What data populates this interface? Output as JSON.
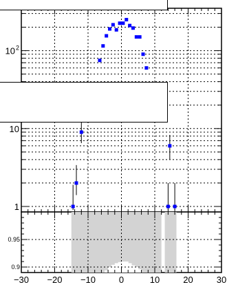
{
  "chart_data": [
    {
      "panel": "main",
      "type": "scatter",
      "scale": "log",
      "xlim": [
        -30,
        30
      ],
      "ylim": [
        0.85,
        350
      ],
      "y_tick_labels": [
        {
          "value": 1,
          "label": "1"
        },
        {
          "value": 10,
          "label": "10"
        },
        {
          "value": 100,
          "label": "10",
          "exponent": "2"
        }
      ],
      "grid": true,
      "series": [
        {
          "marker": "filled-square",
          "color": "#0000ff",
          "points": [
            {
              "x": -14.5,
              "y": 1,
              "err_low": 0.9,
              "err_high": 1.9
            },
            {
              "x": -13.5,
              "y": 2,
              "err_low": 1.4,
              "err_high": 3.4
            },
            {
              "x": -12,
              "y": 9,
              "err_low": 6.5,
              "err_high": 12.5
            },
            {
              "x": -6.5,
              "y": 75
            },
            {
              "x": -5.5,
              "y": 115
            },
            {
              "x": -4.5,
              "y": 155
            },
            {
              "x": -3.5,
              "y": 190
            },
            {
              "x": -2.5,
              "y": 215
            },
            {
              "x": -1.5,
              "y": 185
            },
            {
              "x": -0.5,
              "y": 225
            },
            {
              "x": 0.5,
              "y": 225
            },
            {
              "x": 1.5,
              "y": 250
            },
            {
              "x": 2.5,
              "y": 210
            },
            {
              "x": 3.5,
              "y": 195
            },
            {
              "x": 4.5,
              "y": 150
            },
            {
              "x": 5.5,
              "y": 150
            },
            {
              "x": 6.5,
              "y": 90
            },
            {
              "x": 7.5,
              "y": 60
            },
            {
              "x": 14,
              "y": 1,
              "err_low": 0.9,
              "err_high": 2.0
            },
            {
              "x": 14.5,
              "y": 6,
              "err_low": 4.0,
              "err_high": 8.3
            },
            {
              "x": 16,
              "y": 1,
              "err_low": 0.9,
              "err_high": 2.0
            }
          ]
        }
      ]
    },
    {
      "panel": "ratio",
      "type": "bar",
      "xlim": [
        -30,
        30
      ],
      "ylim": [
        0.89,
        1.0
      ],
      "x_ticks": [
        "−30",
        "−20",
        "−10",
        "0",
        "10",
        "20",
        "30"
      ],
      "y_tick_labels": [
        "0.9",
        "0.95"
      ],
      "band_color": "#d3d3d3",
      "bands": [
        {
          "x0": -15,
          "x1": 12
        },
        {
          "x0": 13,
          "x1": 16.5
        }
      ],
      "white_bins": [
        {
          "x0": -5,
          "x1": -4,
          "y": 0.894
        },
        {
          "x0": -4,
          "x1": -3,
          "y": 0.9
        },
        {
          "x0": -3,
          "x1": -2,
          "y": 0.904
        },
        {
          "x0": -2,
          "x1": -1,
          "y": 0.907
        },
        {
          "x0": -1,
          "x1": 0,
          "y": 0.909
        },
        {
          "x0": 0,
          "x1": 1,
          "y": 0.91
        },
        {
          "x0": 1,
          "x1": 2,
          "y": 0.91
        },
        {
          "x0": 2,
          "x1": 3,
          "y": 0.907
        },
        {
          "x0": 3,
          "x1": 4,
          "y": 0.903
        },
        {
          "x0": 4,
          "x1": 5,
          "y": 0.9
        },
        {
          "x0": 5,
          "x1": 6,
          "y": 0.896
        }
      ]
    }
  ]
}
